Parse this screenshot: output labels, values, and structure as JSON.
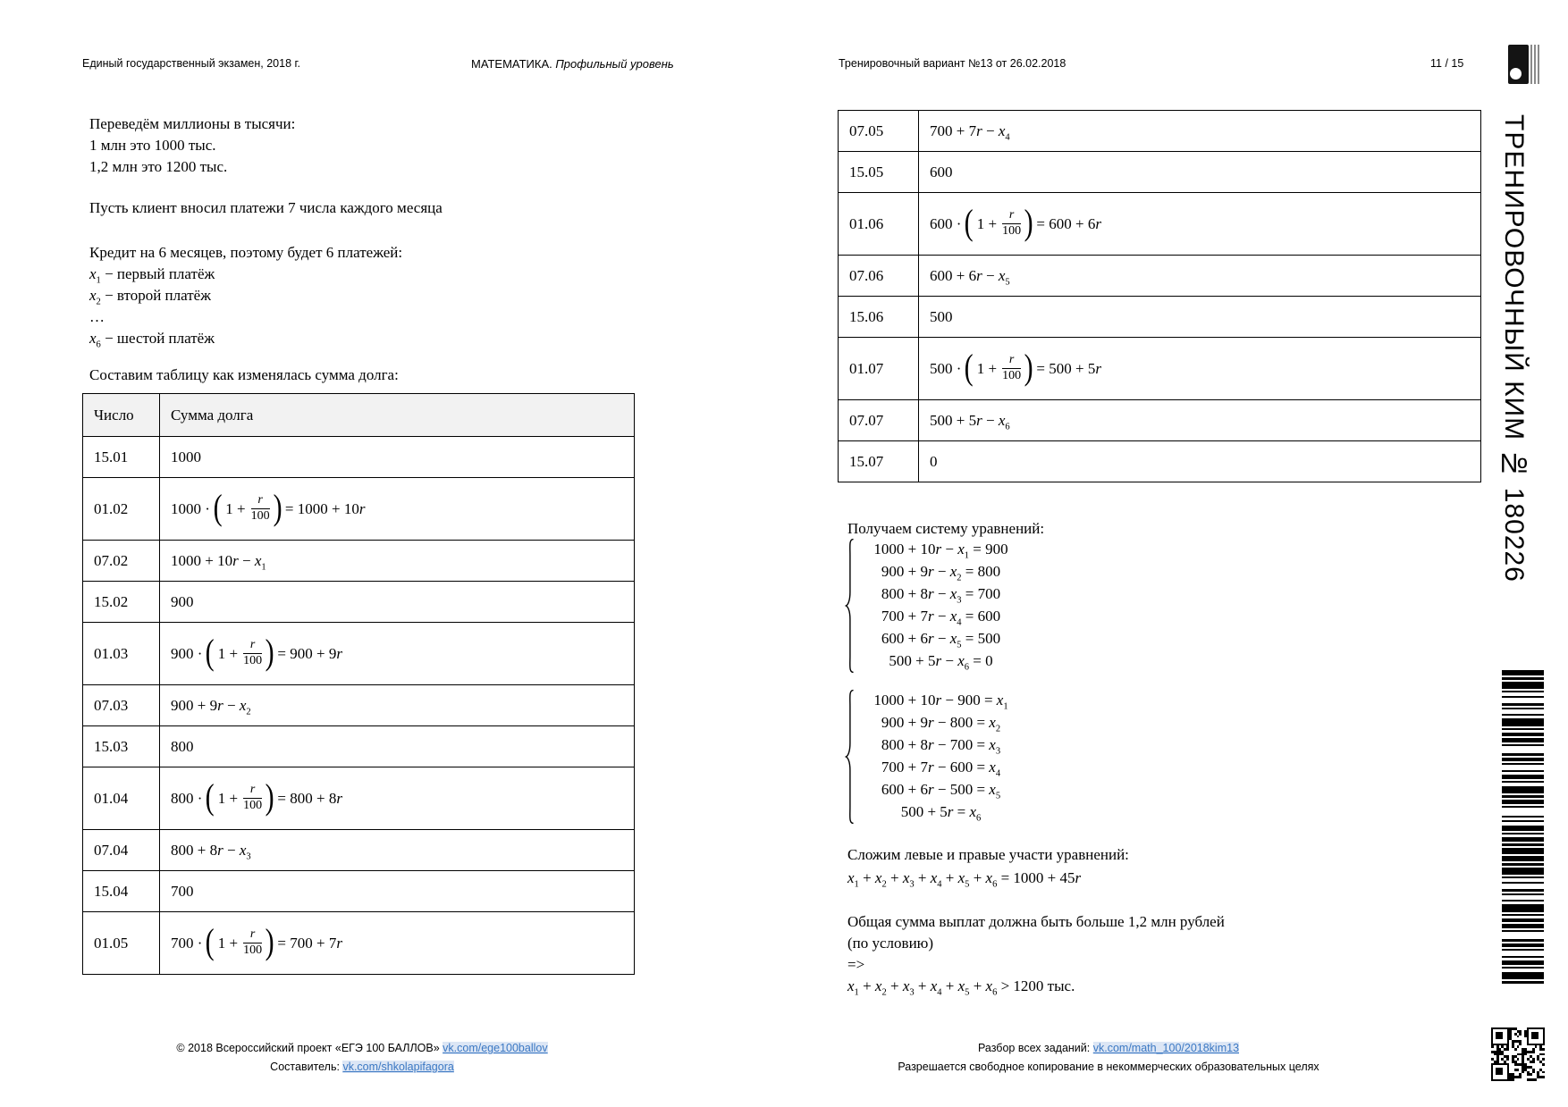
{
  "header": {
    "left": "Единый государственный экзамен, 2018 г.",
    "center_regular": "МАТЕМАТИКА. ",
    "center_italic": "Профильный уровень",
    "right": "Тренировочный вариант №13 от 26.02.2018",
    "page": "11 / 15"
  },
  "sidebar": {
    "vertical_text": "ТРЕНИРОВОЧНЫЙ КИМ № 180226"
  },
  "left_column": {
    "para1": [
      "Переведём миллионы в тысячи:",
      "1 млн это 1000 тыс.",
      "1,2 млн это 1200 тыс."
    ],
    "para2": "Пусть клиент вносил платежи 7 числа каждого месяца",
    "para3_title": "Кредит на 6 месяцев, поэтому будет 6 платежей:",
    "payments": [
      "x_1 − первый платёж",
      "x_2 − второй платёж",
      "…",
      "x_6 − шестой платёж"
    ],
    "table_caption": "Составим таблицу как изменялась сумма долга:"
  },
  "debt_table": {
    "headers": [
      "Число",
      "Сумма долга"
    ],
    "fraction": {
      "one_plus": "1 +",
      "numerator": "r",
      "denominator": "100"
    },
    "rows_left": [
      {
        "date": "15.01",
        "type": "plain",
        "formula": "1000"
      },
      {
        "date": "01.02",
        "type": "compound",
        "base": "1000",
        "result": "1000 + 10r"
      },
      {
        "date": "07.02",
        "type": "plain",
        "formula": "1000 + 10r − x_1"
      },
      {
        "date": "15.02",
        "type": "plain",
        "formula": "900"
      },
      {
        "date": "01.03",
        "type": "compound",
        "base": "900",
        "result": "900 + 9r"
      },
      {
        "date": "07.03",
        "type": "plain",
        "formula": "900 + 9r − x_2"
      },
      {
        "date": "15.03",
        "type": "plain",
        "formula": "800"
      },
      {
        "date": "01.04",
        "type": "compound",
        "base": "800",
        "result": "800 + 8r"
      },
      {
        "date": "07.04",
        "type": "plain",
        "formula": "800 + 8r − x_3"
      },
      {
        "date": "15.04",
        "type": "plain",
        "formula": "700"
      },
      {
        "date": "01.05",
        "type": "compound",
        "base": "700",
        "result": "700 + 7r"
      }
    ],
    "rows_right": [
      {
        "date": "07.05",
        "type": "plain",
        "formula": "700 + 7r − x_4"
      },
      {
        "date": "15.05",
        "type": "plain",
        "formula": "600"
      },
      {
        "date": "01.06",
        "type": "compound",
        "base": "600",
        "result": "600 + 6r"
      },
      {
        "date": "07.06",
        "type": "plain",
        "formula": "600 + 6r − x_5"
      },
      {
        "date": "15.06",
        "type": "plain",
        "formula": "500"
      },
      {
        "date": "01.07",
        "type": "compound",
        "base": "500",
        "result": "500 + 5r"
      },
      {
        "date": "07.07",
        "type": "plain",
        "formula": "500 + 5r − x_6"
      },
      {
        "date": "15.07",
        "type": "plain",
        "formula": "0"
      }
    ]
  },
  "right_column": {
    "system_intro": "Получаем систему уравнений:",
    "system1": [
      "1000 + 10r − x_1 = 900",
      "900 + 9r − x_2 = 800",
      "800 + 8r − x_3 = 700",
      "700 + 7r − x_4 = 600",
      "600 + 6r − x_5 = 500",
      "500 + 5r − x_6 = 0"
    ],
    "system2": [
      "1000 + 10r − 900 = x_1",
      "900 + 9r − 800 = x_2",
      "800 + 8r − 700 = x_3",
      "700 + 7r − 600 = x_4",
      "600 + 6r − 500 = x_5",
      "500 + 5r = x_6"
    ],
    "sum_intro": "Сложим левые и правые участи уравнений:",
    "sum_eq": "x_1 + x_2 + x_3 + x_4 + x_5 + x_6 = 1000 + 45r",
    "conclusion1": "Общая сумма выплат должна быть больше 1,2 млн рублей",
    "conclusion2": "(по условию)",
    "arrow": "=>",
    "final_eq": "x_1 + x_2 + x_3 + x_4 + x_5 + x_6 > 1200 тыс."
  },
  "footer": {
    "left_line1_text": "© 2018 Всероссийский проект «ЕГЭ 100 БАЛЛОВ» ",
    "left_line1_link": "vk.com/ege100ballov",
    "left_line2_text": "Составитель: ",
    "left_line2_link": "vk.com/shkolapifagora",
    "right_line1_text": "Разбор всех заданий: ",
    "right_line1_link": "vk.com/math_100/2018kim13",
    "right_line2": "Разрешается свободное копирование в некоммерческих образовательных целях"
  },
  "colors": {
    "link": "#3b78c3",
    "link_background": "#dce6f5",
    "table_header_background": "#f2f2f2",
    "text": "#000000"
  }
}
